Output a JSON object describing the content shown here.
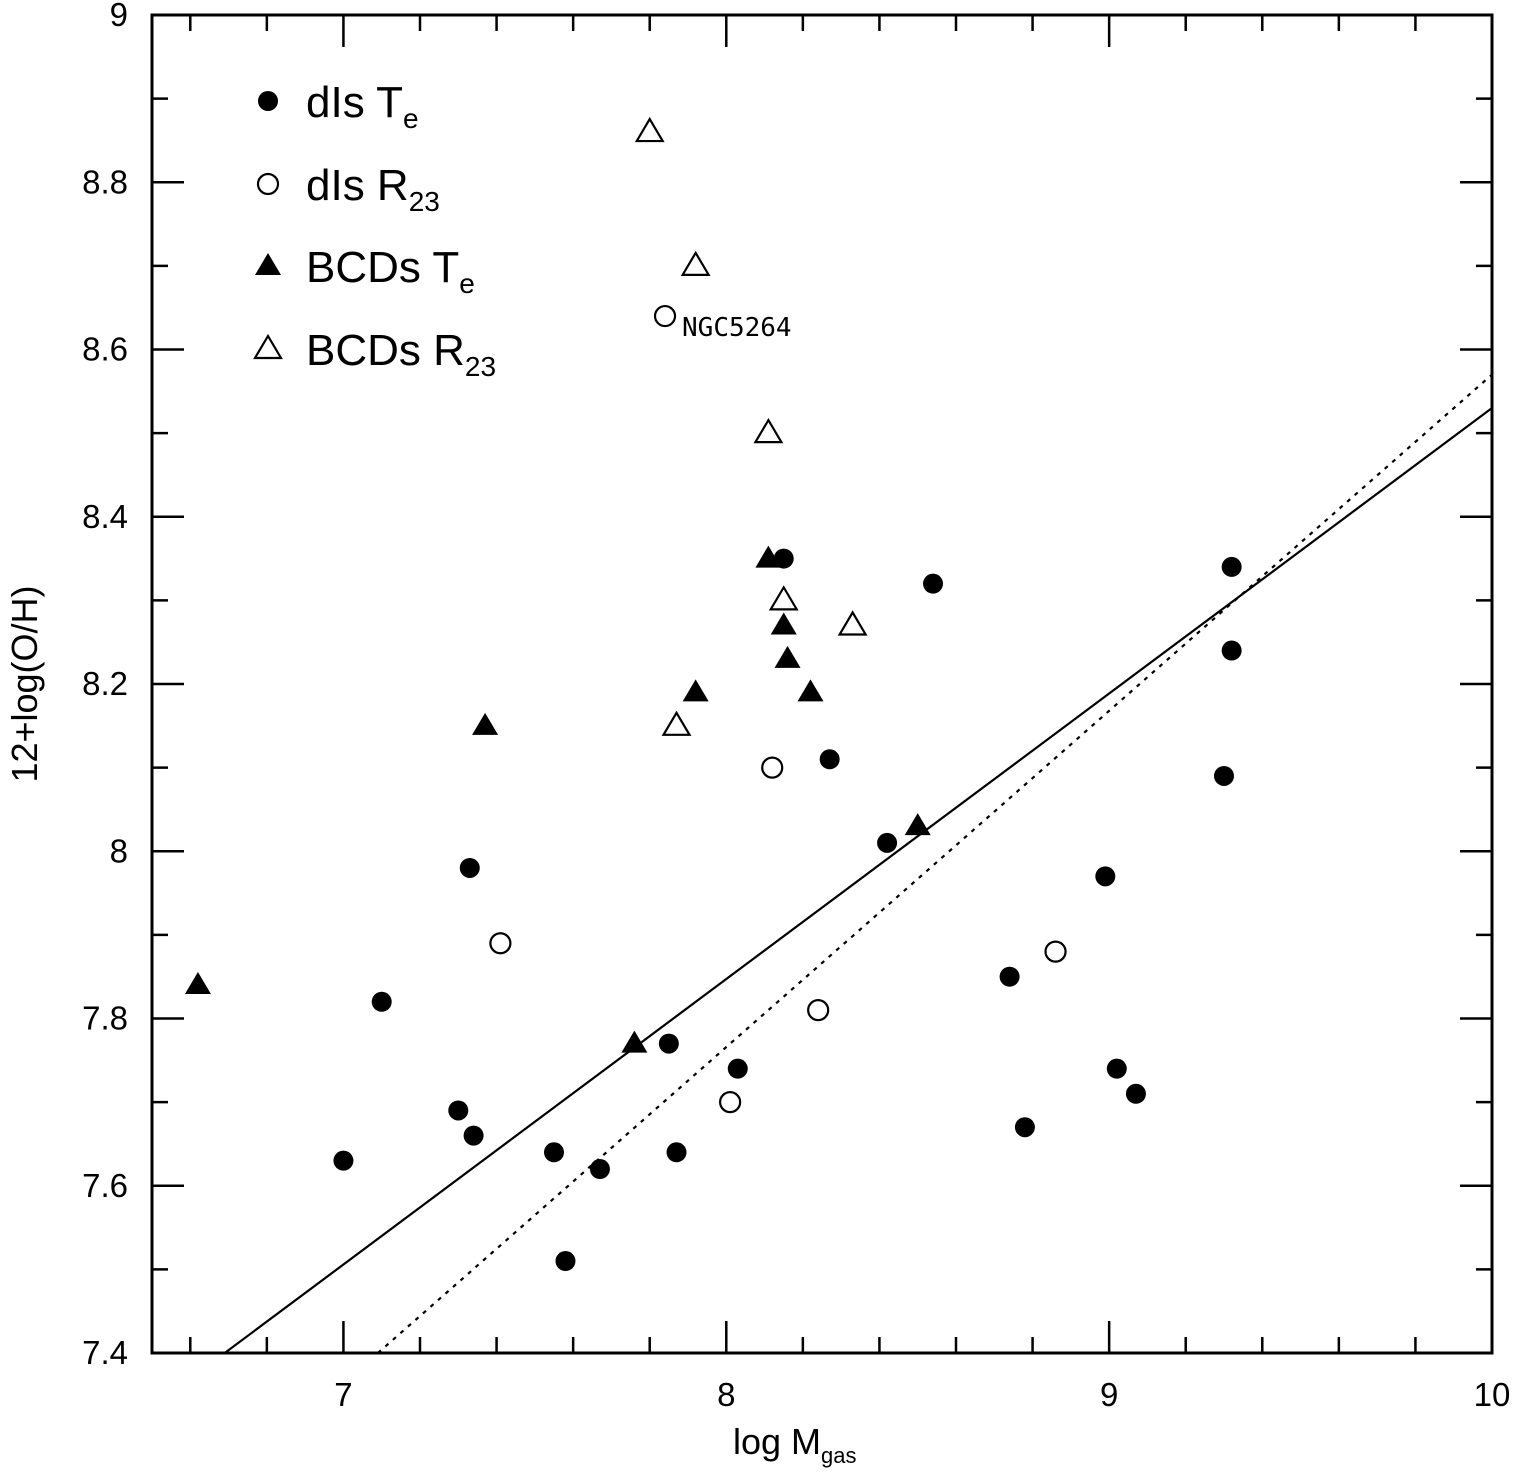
{
  "chart_data": {
    "type": "scatter",
    "title": "",
    "xlabel": "log M",
    "xlabel_sub": "gas",
    "ylabel": "12+log(O/H)",
    "xlim": [
      6.5,
      10
    ],
    "ylim": [
      7.4,
      9
    ],
    "x_ticks": [
      "7",
      "8",
      "9",
      "10"
    ],
    "y_ticks": [
      "7.4",
      "7.6",
      "7.8",
      "8",
      "8.2",
      "8.4",
      "8.6",
      "8.8",
      "9"
    ],
    "legend_position": "top-left",
    "series": [
      {
        "name": "dIs T",
        "name_sub": "e",
        "marker": "filled-circle",
        "points": [
          {
            "x": 7.0,
            "y": 7.63
          },
          {
            "x": 7.1,
            "y": 7.82
          },
          {
            "x": 7.3,
            "y": 7.69
          },
          {
            "x": 7.33,
            "y": 7.98
          },
          {
            "x": 7.34,
            "y": 7.66
          },
          {
            "x": 7.55,
            "y": 7.64
          },
          {
            "x": 7.58,
            "y": 7.51
          },
          {
            "x": 7.67,
            "y": 7.62
          },
          {
            "x": 7.85,
            "y": 7.77
          },
          {
            "x": 7.87,
            "y": 7.64
          },
          {
            "x": 8.03,
            "y": 7.74
          },
          {
            "x": 8.15,
            "y": 8.35
          },
          {
            "x": 8.27,
            "y": 8.11
          },
          {
            "x": 8.42,
            "y": 8.01
          },
          {
            "x": 8.54,
            "y": 8.32
          },
          {
            "x": 8.74,
            "y": 7.85
          },
          {
            "x": 8.78,
            "y": 7.67
          },
          {
            "x": 8.99,
            "y": 7.97
          },
          {
            "x": 9.02,
            "y": 7.74
          },
          {
            "x": 9.07,
            "y": 7.71
          },
          {
            "x": 9.3,
            "y": 8.09
          },
          {
            "x": 9.32,
            "y": 8.34
          },
          {
            "x": 9.32,
            "y": 8.24
          }
        ]
      },
      {
        "name": "dIs R",
        "name_sub": "23",
        "marker": "open-circle",
        "points": [
          {
            "x": 7.41,
            "y": 7.89
          },
          {
            "x": 7.84,
            "y": 8.64
          },
          {
            "x": 8.01,
            "y": 7.7
          },
          {
            "x": 8.12,
            "y": 8.1
          },
          {
            "x": 8.24,
            "y": 7.81
          },
          {
            "x": 8.86,
            "y": 7.88
          }
        ]
      },
      {
        "name": "BCDs T",
        "name_sub": "e",
        "marker": "filled-triangle",
        "points": [
          {
            "x": 6.62,
            "y": 7.84
          },
          {
            "x": 7.37,
            "y": 8.15
          },
          {
            "x": 7.76,
            "y": 7.77
          },
          {
            "x": 7.92,
            "y": 8.19
          },
          {
            "x": 8.11,
            "y": 8.35
          },
          {
            "x": 8.15,
            "y": 8.27
          },
          {
            "x": 8.16,
            "y": 8.23
          },
          {
            "x": 8.22,
            "y": 8.19
          },
          {
            "x": 8.5,
            "y": 8.03
          }
        ]
      },
      {
        "name": "BCDs R",
        "name_sub": "23",
        "marker": "open-triangle",
        "points": [
          {
            "x": 7.8,
            "y": 8.86
          },
          {
            "x": 7.87,
            "y": 8.15
          },
          {
            "x": 7.92,
            "y": 8.7
          },
          {
            "x": 8.11,
            "y": 8.5
          },
          {
            "x": 8.15,
            "y": 8.3
          },
          {
            "x": 8.33,
            "y": 8.27
          }
        ]
      }
    ],
    "lines": [
      {
        "name": "fit-solid",
        "style": "solid",
        "x": [
          6.69,
          10.0
        ],
        "y": [
          7.4,
          8.53
        ]
      },
      {
        "name": "fit-dotted",
        "style": "dotted",
        "x": [
          7.09,
          10.0
        ],
        "y": [
          7.4,
          8.57
        ]
      }
    ],
    "annotations": [
      {
        "text": "NGC5264",
        "x": 7.84,
        "y": 8.64
      }
    ]
  }
}
